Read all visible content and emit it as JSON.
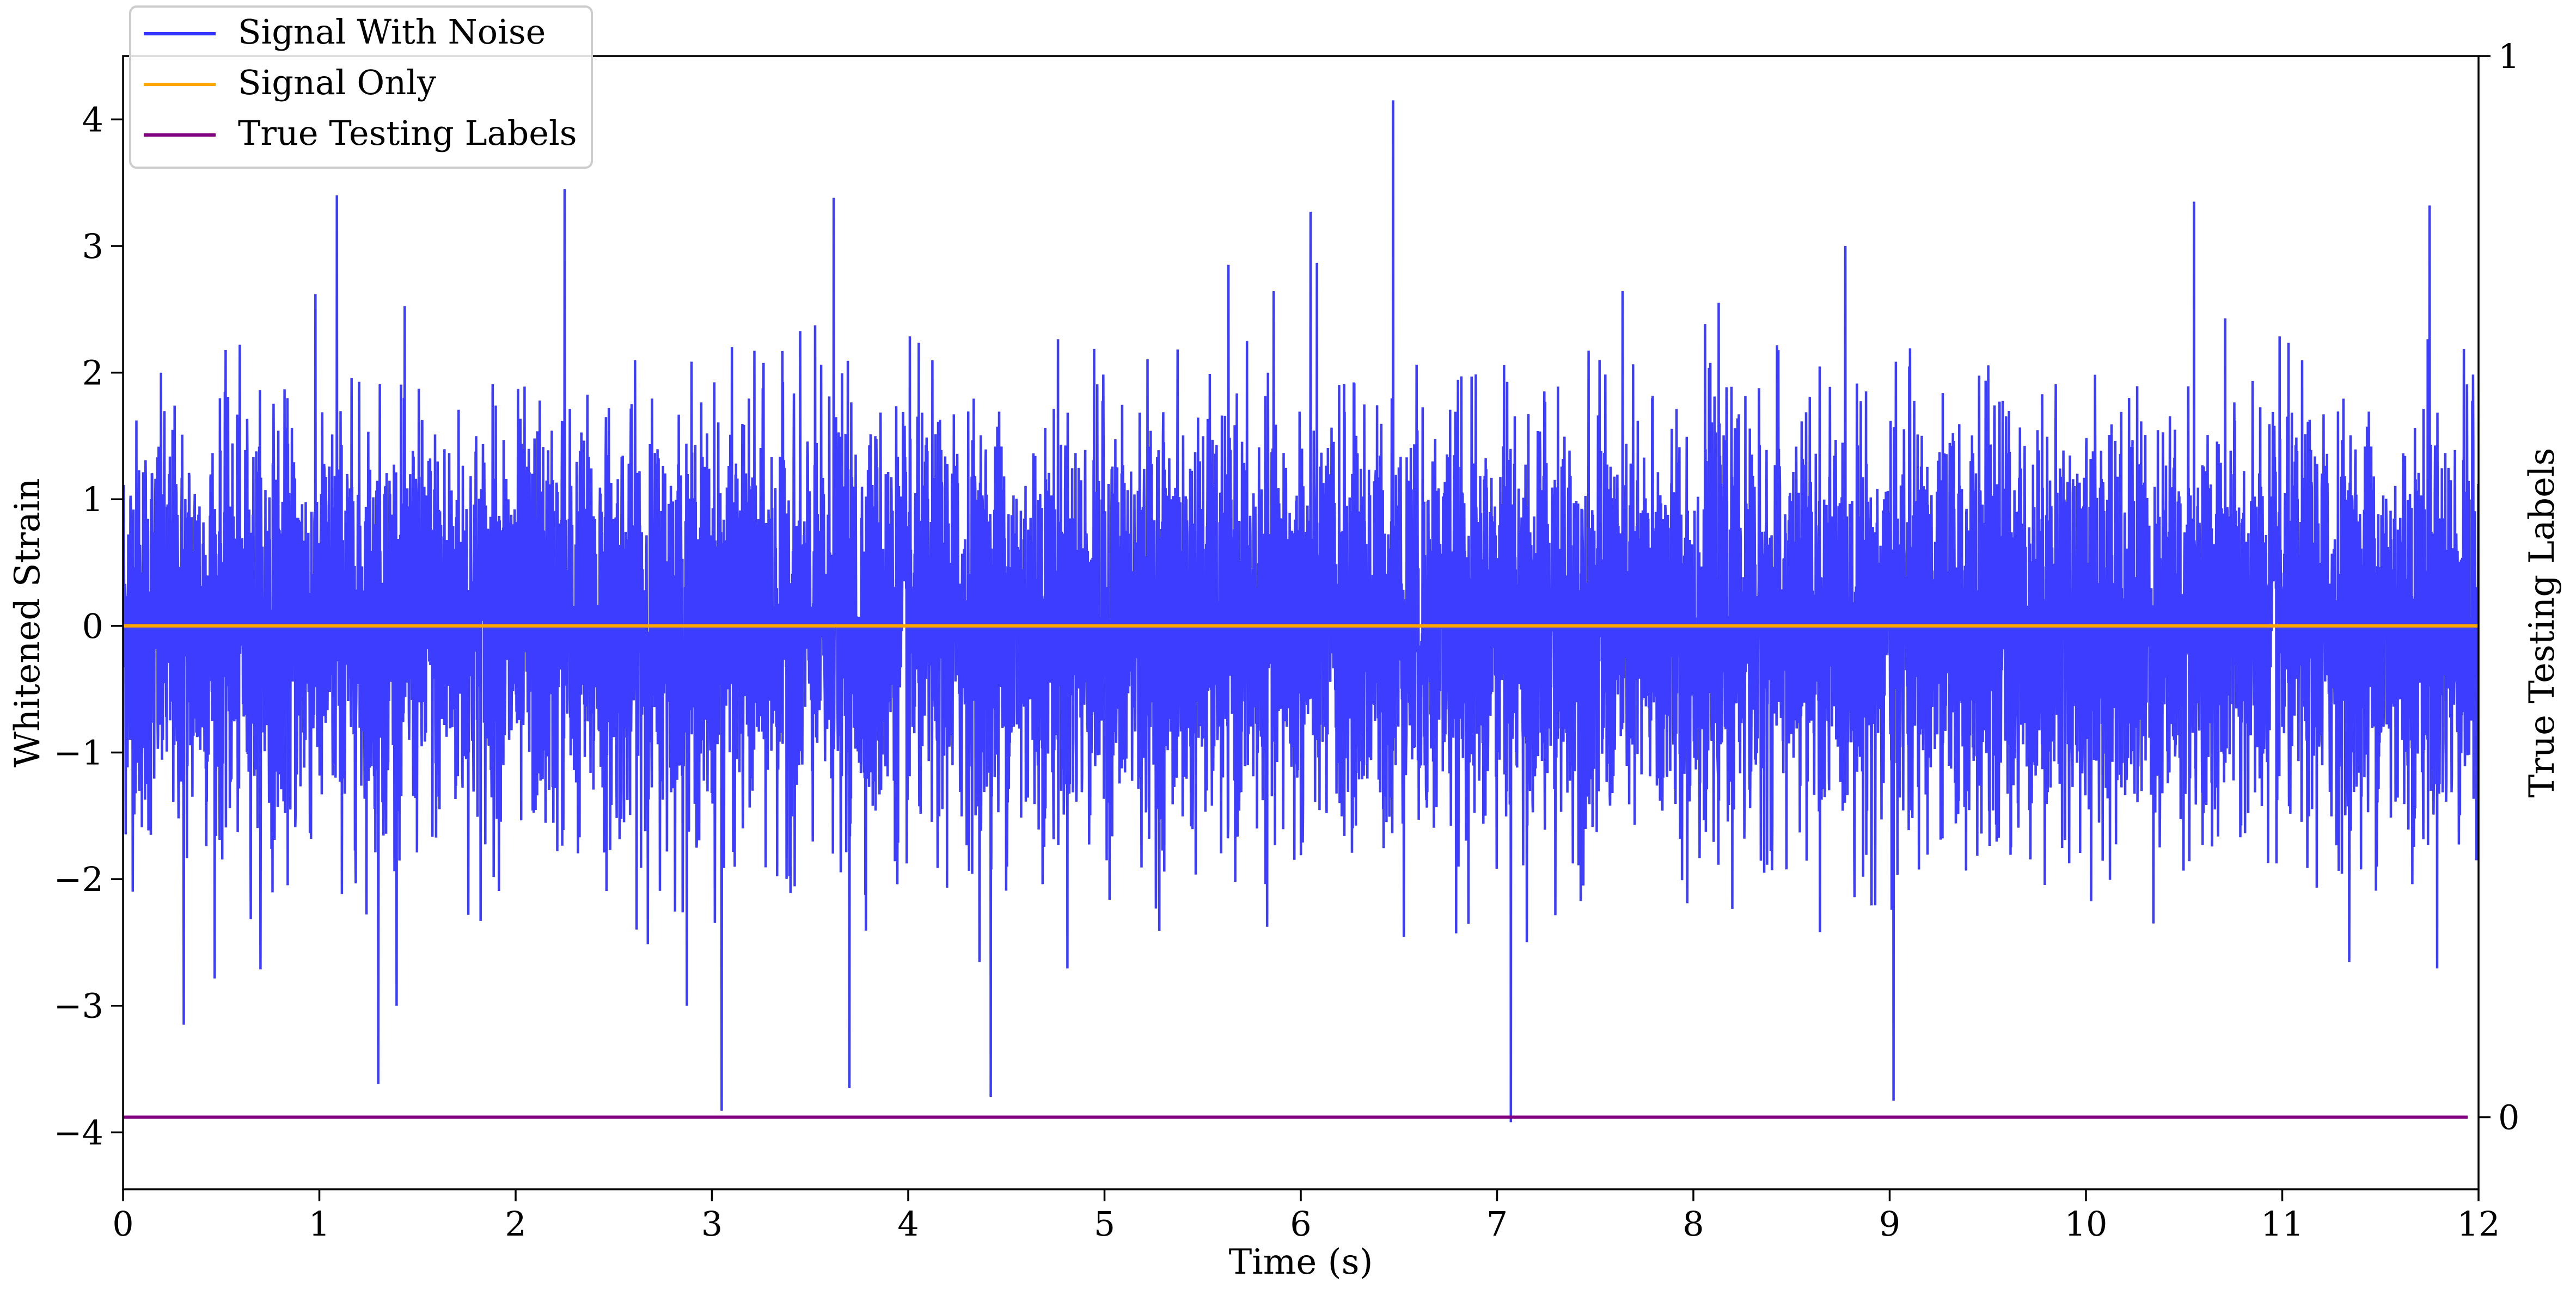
{
  "chart_data": {
    "type": "line",
    "title": "",
    "xlabel": "Time (s)",
    "ylabel": "Whitened Strain",
    "ylabel_right": "True Testing Labels",
    "xlim": [
      0,
      12
    ],
    "ylim": [
      -4.45,
      4.5
    ],
    "ylim_right": [
      -0.068,
      1.0
    ],
    "x_ticks": [
      0,
      1,
      2,
      3,
      4,
      5,
      6,
      7,
      8,
      9,
      10,
      11,
      12
    ],
    "x_tick_labels": [
      "0",
      "1",
      "2",
      "3",
      "4",
      "5",
      "6",
      "7",
      "8",
      "9",
      "10",
      "11",
      "12"
    ],
    "y_ticks": [
      -4,
      -3,
      -2,
      -1,
      0,
      1,
      2,
      3,
      4
    ],
    "y_tick_labels": [
      "−4",
      "−3",
      "−2",
      "−1",
      "0",
      "1",
      "2",
      "3",
      "4"
    ],
    "y_right_ticks": [
      0,
      1
    ],
    "y_right_tick_labels": [
      "0",
      "1"
    ],
    "grid": false,
    "legend_position": "top-left",
    "noise_sigma": 0.8,
    "series": [
      {
        "name": "Signal With Noise",
        "axis": "left",
        "color": "#3333ff",
        "description_values": "Dense noise band roughly ±1 with spikes reaching about ±2.5, extremes ~+4.15 at t≈6.47 and ~−3.9 at t≈7.07",
        "peaks": [
          {
            "x": 1.09,
            "y": 3.4
          },
          {
            "x": 2.25,
            "y": 3.45
          },
          {
            "x": 3.62,
            "y": 3.38
          },
          {
            "x": 6.47,
            "y": 4.15
          },
          {
            "x": 6.05,
            "y": 3.27
          },
          {
            "x": 10.55,
            "y": 3.35
          },
          {
            "x": 11.75,
            "y": 3.32
          },
          {
            "x": 1.3,
            "y": -3.62
          },
          {
            "x": 3.05,
            "y": -3.83
          },
          {
            "x": 3.7,
            "y": -3.65
          },
          {
            "x": 4.42,
            "y": -3.72
          },
          {
            "x": 7.07,
            "y": -3.92
          },
          {
            "x": 9.02,
            "y": -3.75
          },
          {
            "x": 0.31,
            "y": -3.15
          }
        ]
      },
      {
        "name": "Signal Only",
        "axis": "left",
        "color": "#ffa500",
        "x": [
          0,
          12
        ],
        "values": [
          0,
          0
        ]
      },
      {
        "name": "True Testing Labels",
        "axis": "right",
        "color": "#800080",
        "x": [
          0,
          12
        ],
        "values": [
          0,
          0
        ]
      }
    ]
  }
}
